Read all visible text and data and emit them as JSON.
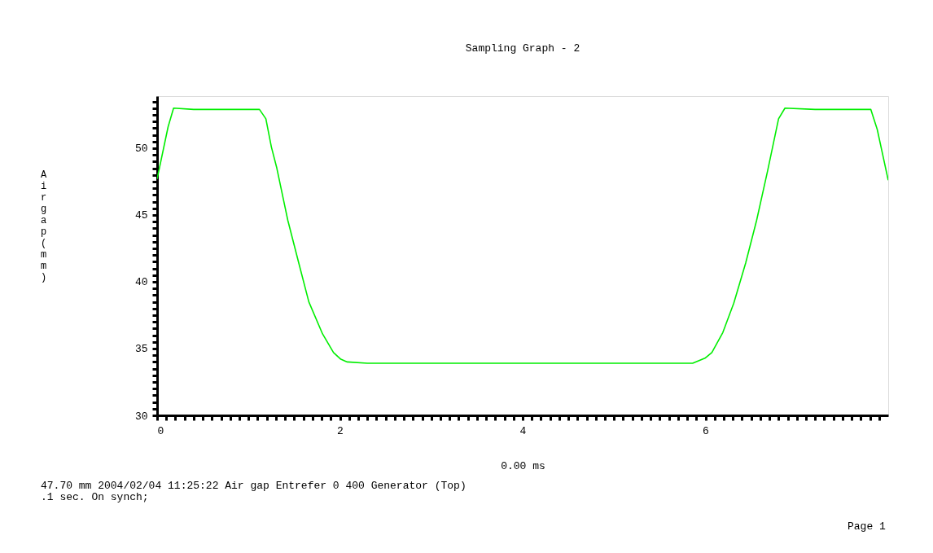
{
  "chart_data": {
    "type": "line",
    "title": "Sampling Graph - 2",
    "xlabel": "0.00  ms",
    "ylabel": "Air gap (mm)",
    "annotations": [
      "47.70  mm 2004/02/04  11:25:22 Air gap Entrefer 0 400 Generator (Top)",
      ".1 sec. On synch;",
      "Page  1"
    ],
    "xlim": [
      0,
      8
    ],
    "ylim": [
      30,
      53.9
    ],
    "xticks": [
      0,
      {
        "value": 0.1,
        "label": null
      },
      {
        "value": 0.2,
        "label": null
      },
      {
        "value": 0.3,
        "label": null
      },
      {
        "value": 0.4,
        "label": null
      },
      {
        "value": 0.5,
        "label": null
      },
      {
        "value": 0.6,
        "label": null
      },
      {
        "value": 0.7,
        "label": null
      },
      {
        "value": 0.8,
        "label": null
      },
      {
        "value": 0.9,
        "label": null
      },
      {
        "value": 1,
        "label": null
      },
      {
        "value": 1.1,
        "label": null
      },
      {
        "value": 1.2,
        "label": null
      },
      {
        "value": 1.3,
        "label": null
      },
      {
        "value": 1.4,
        "label": null
      },
      {
        "value": 1.5,
        "label": null
      },
      {
        "value": 1.6,
        "label": null
      },
      {
        "value": 1.7,
        "label": null
      },
      {
        "value": 1.8,
        "label": null
      },
      {
        "value": 1.9,
        "label": null
      },
      2,
      {
        "value": 2.1,
        "label": null
      },
      {
        "value": 2.2,
        "label": null
      },
      {
        "value": 2.3,
        "label": null
      },
      {
        "value": 2.4,
        "label": null
      },
      {
        "value": 2.5,
        "label": null
      },
      {
        "value": 2.6,
        "label": null
      },
      {
        "value": 2.7,
        "label": null
      },
      {
        "value": 2.8,
        "label": null
      },
      {
        "value": 2.9,
        "label": null
      },
      {
        "value": 3,
        "label": null
      },
      {
        "value": 3.1,
        "label": null
      },
      {
        "value": 3.2,
        "label": null
      },
      {
        "value": 3.3,
        "label": null
      },
      {
        "value": 3.4,
        "label": null
      },
      {
        "value": 3.5,
        "label": null
      },
      {
        "value": 3.6,
        "label": null
      },
      {
        "value": 3.7,
        "label": null
      },
      {
        "value": 3.8,
        "label": null
      },
      {
        "value": 3.9,
        "label": null
      },
      4,
      {
        "value": 4.1,
        "label": null
      },
      {
        "value": 4.2,
        "label": null
      },
      {
        "value": 4.3,
        "label": null
      },
      {
        "value": 4.4,
        "label": null
      },
      {
        "value": 4.5,
        "label": null
      },
      {
        "value": 4.6,
        "label": null
      },
      {
        "value": 4.7,
        "label": null
      },
      {
        "value": 4.8,
        "label": null
      },
      {
        "value": 4.9,
        "label": null
      },
      {
        "value": 5,
        "label": null
      },
      {
        "value": 5.1,
        "label": null
      },
      {
        "value": 5.2,
        "label": null
      },
      {
        "value": 5.3,
        "label": null
      },
      {
        "value": 5.4,
        "label": null
      },
      {
        "value": 5.5,
        "label": null
      },
      {
        "value": 5.6,
        "label": null
      },
      {
        "value": 5.7,
        "label": null
      },
      {
        "value": 5.8,
        "label": null
      },
      {
        "value": 5.9,
        "label": null
      },
      6,
      {
        "value": 6.1,
        "label": null
      },
      {
        "value": 6.2,
        "label": null
      },
      {
        "value": 6.3,
        "label": null
      },
      {
        "value": 6.4,
        "label": null
      },
      {
        "value": 6.5,
        "label": null
      },
      {
        "value": 6.6,
        "label": null
      },
      {
        "value": 6.7,
        "label": null
      },
      {
        "value": 6.8,
        "label": null
      },
      {
        "value": 6.9,
        "label": null
      },
      {
        "value": 7,
        "label": null
      },
      {
        "value": 7.1,
        "label": null
      },
      {
        "value": 7.2,
        "label": null
      },
      {
        "value": 7.3,
        "label": null
      },
      {
        "value": 7.4,
        "label": null
      },
      {
        "value": 7.5,
        "label": null
      },
      {
        "value": 7.6,
        "label": null
      },
      {
        "value": 7.7,
        "label": null
      },
      {
        "value": 7.8,
        "label": null
      },
      {
        "value": 7.9,
        "label": null
      }
    ],
    "yticks": [
      30,
      {
        "value": 30.5,
        "label": null
      },
      {
        "value": 31,
        "label": null
      },
      {
        "value": 31.5,
        "label": null
      },
      {
        "value": 32,
        "label": null
      },
      {
        "value": 32.5,
        "label": null
      },
      {
        "value": 33,
        "label": null
      },
      {
        "value": 33.5,
        "label": null
      },
      {
        "value": 34,
        "label": null
      },
      {
        "value": 34.5,
        "label": null
      },
      35,
      {
        "value": 35.5,
        "label": null
      },
      {
        "value": 36,
        "label": null
      },
      {
        "value": 36.5,
        "label": null
      },
      {
        "value": 37,
        "label": null
      },
      {
        "value": 37.5,
        "label": null
      },
      {
        "value": 38,
        "label": null
      },
      {
        "value": 38.5,
        "label": null
      },
      {
        "value": 39,
        "label": null
      },
      {
        "value": 39.5,
        "label": null
      },
      40,
      {
        "value": 40.5,
        "label": null
      },
      {
        "value": 41,
        "label": null
      },
      {
        "value": 41.5,
        "label": null
      },
      {
        "value": 42,
        "label": null
      },
      {
        "value": 42.5,
        "label": null
      },
      {
        "value": 43,
        "label": null
      },
      {
        "value": 43.5,
        "label": null
      },
      {
        "value": 44,
        "label": null
      },
      {
        "value": 44.5,
        "label": null
      },
      45,
      {
        "value": 45.5,
        "label": null
      },
      {
        "value": 46,
        "label": null
      },
      {
        "value": 46.5,
        "label": null
      },
      {
        "value": 47,
        "label": null
      },
      {
        "value": 47.5,
        "label": null
      },
      {
        "value": 48,
        "label": null
      },
      {
        "value": 48.5,
        "label": null
      },
      {
        "value": 49,
        "label": null
      },
      {
        "value": 49.5,
        "label": null
      },
      50,
      {
        "value": 50.5,
        "label": null
      },
      {
        "value": 51,
        "label": null
      },
      {
        "value": 51.5,
        "label": null
      },
      {
        "value": 52,
        "label": null
      },
      {
        "value": 52.5,
        "label": null
      },
      {
        "value": 53,
        "label": null
      },
      {
        "value": 53.5,
        "label": null
      }
    ],
    "grid": false,
    "legend": false,
    "marker": "none",
    "line_style": "solid",
    "series": [
      {
        "color": "#00ee00",
        "x": [
          0,
          0.12,
          0.18,
          0.4,
          0.8,
          1.12,
          1.19,
          1.25,
          1.31,
          1.43,
          1.55,
          1.66,
          1.81,
          1.93,
          2.01,
          2.08,
          2.3,
          2.6,
          3.0,
          3.4,
          3.8,
          4.2,
          4.6,
          5.0,
          5.4,
          5.86,
          6.0,
          6.07,
          6.19,
          6.31,
          6.44,
          6.56,
          6.68,
          6.8,
          6.87,
          7.2,
          7.6,
          7.81,
          7.88,
          7.94,
          8.0
        ],
        "values": [
          47.7,
          51.6,
          53.0,
          52.9,
          52.9,
          52.9,
          52.2,
          50.1,
          48.5,
          44.6,
          41.4,
          38.5,
          36.1,
          34.7,
          34.2,
          34.0,
          33.9,
          33.9,
          33.9,
          33.9,
          33.9,
          33.9,
          33.9,
          33.9,
          33.9,
          33.9,
          34.3,
          34.7,
          36.2,
          38.4,
          41.4,
          44.6,
          48.3,
          52.2,
          53.0,
          52.9,
          52.9,
          52.9,
          51.4,
          49.5,
          47.6
        ]
      }
    ]
  }
}
